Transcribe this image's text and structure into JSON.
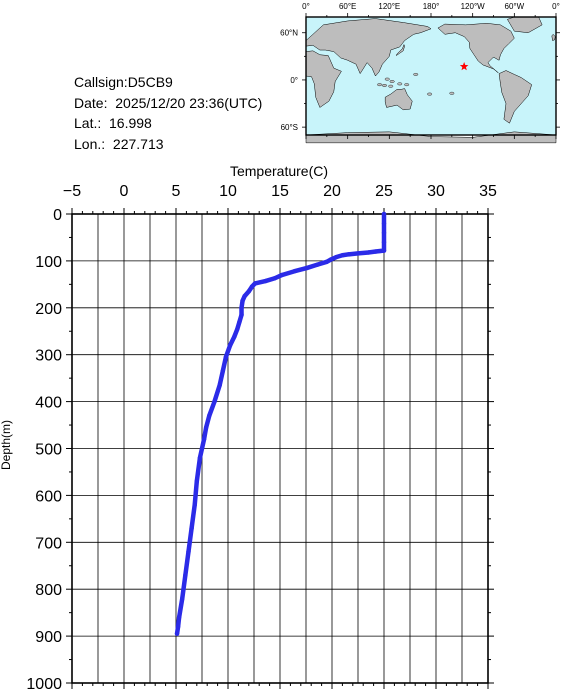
{
  "info": {
    "callsign": "Callsign:D5CB9",
    "date": "Date:  2025/12/20 23:36(UTC)",
    "lat": "Lat.:  16.998",
    "lon": "Lon.:  227.713"
  },
  "map": {
    "top_labels": [
      "0°",
      "60°E",
      "120°E",
      "180°",
      "120°W",
      "60°W",
      "0°"
    ],
    "side_labels": [
      "60°N",
      "0°",
      "60°S"
    ],
    "marker": {
      "lon": 227.713,
      "lat": 16.998
    },
    "colors": {
      "ocean": "#c8f4fa",
      "land": "#bdbdbd",
      "marker": "#ff0000"
    }
  },
  "chart_data": {
    "type": "line",
    "xlabel": "Temperature(C)",
    "ylabel": "Depth(m)",
    "xlim": [
      -5,
      35
    ],
    "ylim": [
      0,
      1000
    ],
    "x_ticks": [
      -5,
      0,
      5,
      10,
      15,
      20,
      25,
      30,
      35
    ],
    "y_ticks": [
      0,
      100,
      200,
      300,
      400,
      500,
      600,
      700,
      800,
      900,
      1000
    ],
    "y_inverted": true,
    "grid": true,
    "line_color": "#2b2be8",
    "series": [
      {
        "points": [
          [
            25.0,
            0
          ],
          [
            25.0,
            20
          ],
          [
            25.0,
            40
          ],
          [
            25.0,
            60
          ],
          [
            25.0,
            78
          ],
          [
            24.2,
            80
          ],
          [
            23.5,
            82
          ],
          [
            22.5,
            84
          ],
          [
            21.6,
            86
          ],
          [
            21.0,
            88
          ],
          [
            20.4,
            92
          ],
          [
            19.9,
            97
          ],
          [
            19.5,
            102
          ],
          [
            18.6,
            108
          ],
          [
            17.6,
            115
          ],
          [
            16.4,
            122
          ],
          [
            15.2,
            130
          ],
          [
            14.5,
            137
          ],
          [
            13.6,
            143
          ],
          [
            12.6,
            148
          ],
          [
            12.3,
            155
          ],
          [
            12.0,
            165
          ],
          [
            11.6,
            175
          ],
          [
            11.4,
            185
          ],
          [
            11.3,
            200
          ],
          [
            11.3,
            215
          ],
          [
            11.1,
            230
          ],
          [
            10.9,
            245
          ],
          [
            10.6,
            262
          ],
          [
            10.2,
            280
          ],
          [
            9.8,
            305
          ],
          [
            9.5,
            335
          ],
          [
            9.2,
            365
          ],
          [
            8.7,
            400
          ],
          [
            8.2,
            430
          ],
          [
            7.9,
            455
          ],
          [
            7.7,
            480
          ],
          [
            7.3,
            520
          ],
          [
            7.0,
            570
          ],
          [
            6.8,
            620
          ],
          [
            6.5,
            670
          ],
          [
            6.2,
            720
          ],
          [
            5.9,
            770
          ],
          [
            5.6,
            820
          ],
          [
            5.3,
            860
          ],
          [
            5.2,
            880
          ],
          [
            5.1,
            895
          ]
        ]
      }
    ]
  }
}
